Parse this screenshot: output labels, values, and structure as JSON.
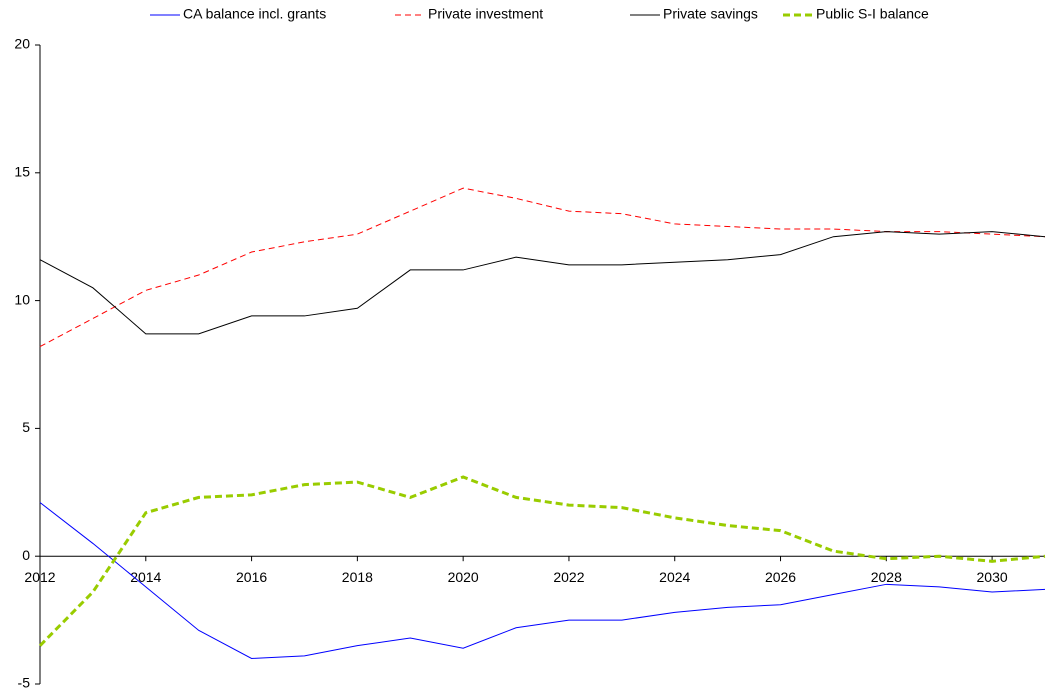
{
  "chart_data": {
    "type": "line",
    "x": [
      2012,
      2013,
      2014,
      2015,
      2016,
      2017,
      2018,
      2019,
      2020,
      2021,
      2022,
      2023,
      2024,
      2025,
      2026,
      2027,
      2028,
      2029,
      2030,
      2031
    ],
    "series": [
      {
        "name": "CA balance incl. grants",
        "color": "#0000ff",
        "linestyle": "solid",
        "values": [
          2.1,
          0.5,
          -1.2,
          -2.9,
          -4.0,
          -3.9,
          -3.5,
          -3.2,
          -3.6,
          -2.8,
          -2.5,
          -2.5,
          -2.2,
          -2.0,
          -1.9,
          -1.5,
          -1.1,
          -1.2,
          -1.4,
          -1.3
        ]
      },
      {
        "name": "Private investment",
        "color": "#ff0000",
        "linestyle": "dashed",
        "values": [
          8.2,
          9.3,
          10.4,
          11.0,
          11.9,
          12.3,
          12.6,
          13.5,
          14.4,
          14.0,
          13.5,
          13.4,
          13.0,
          12.9,
          12.8,
          12.8,
          12.7,
          12.7,
          12.6,
          12.5
        ]
      },
      {
        "name": "Private savings",
        "color": "#000000",
        "linestyle": "solid",
        "values": [
          11.6,
          10.5,
          8.7,
          8.7,
          9.4,
          9.4,
          9.7,
          11.2,
          11.2,
          11.7,
          11.4,
          11.4,
          11.5,
          11.6,
          11.8,
          12.5,
          12.7,
          12.6,
          12.7,
          12.5
        ]
      },
      {
        "name": "Public S-I balance",
        "color": "#99cc00",
        "linestyle": "bold-dashed",
        "values": [
          -3.5,
          -1.4,
          1.7,
          2.3,
          2.4,
          2.8,
          2.9,
          2.3,
          3.1,
          2.3,
          2.0,
          1.9,
          1.5,
          1.2,
          1.0,
          0.2,
          -0.1,
          0.0,
          -0.2,
          0.0
        ]
      }
    ],
    "xlim": [
      2012,
      2031
    ],
    "xticks": [
      2012,
      2014,
      2016,
      2018,
      2020,
      2022,
      2024,
      2026,
      2028,
      2030
    ],
    "ylim": [
      -5,
      20
    ],
    "yticks": [
      -5,
      0,
      5,
      10,
      15,
      20
    ],
    "grid": false,
    "legend": "top"
  }
}
